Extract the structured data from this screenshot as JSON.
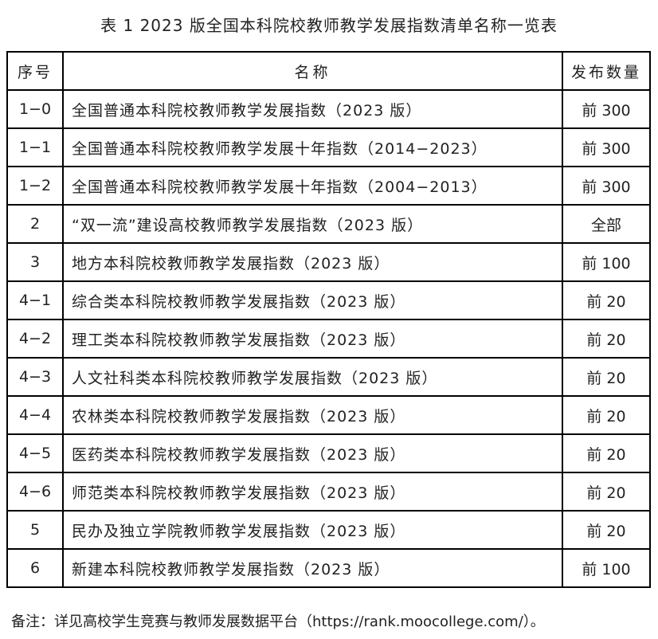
{
  "title": "表 1 2023 版全国本科院校教师教学发展指数清单名称一览表",
  "headers": [
    "序号",
    "名称",
    "发布数量"
  ],
  "rows": [
    {
      "no": "1−0",
      "name": "全国普通本科院校教师教学发展指数（2023 版）",
      "count": "前 300"
    },
    {
      "no": "1−1",
      "name": "全国普通本科院校教师教学发展十年指数（2014−2023）",
      "count": "前 300"
    },
    {
      "no": "1−2",
      "name": "全国普通本科院校教师教学发展十年指数（2004−2013）",
      "count": "前 300"
    },
    {
      "no": "2",
      "name": "“双一流”建设高校教师教学发展指数（2023 版）",
      "count": "全部"
    },
    {
      "no": "3",
      "name": "地方本科院校教师教学发展指数（2023 版）",
      "count": "前 100"
    },
    {
      "no": "4−1",
      "name": "综合类本科院校教师教学发展指数（2023 版）",
      "count": "前 20"
    },
    {
      "no": "4−2",
      "name": "理工类本科院校教师教学发展指数（2023 版）",
      "count": "前 20"
    },
    {
      "no": "4−3",
      "name": "人文社科类本科院校教师教学发展指数（2023 版）",
      "count": "前 20"
    },
    {
      "no": "4−4",
      "name": "农林类本科院校教师教学发展指数（2023 版）",
      "count": "前 20"
    },
    {
      "no": "4−5",
      "name": "医药类本科院校教师教学发展指数（2023 版）",
      "count": "前 20"
    },
    {
      "no": "4−6",
      "name": "师范类本科院校教师教学发展指数（2023 版）",
      "count": "前 20"
    },
    {
      "no": "5",
      "name": "民办及独立学院教师教学发展指数（2023 版）",
      "count": "前 20"
    },
    {
      "no": "6",
      "name": "新建本科院校教师教学发展指数（2023 版）",
      "count": "前 100"
    }
  ],
  "note": "备注：详见高校学生竞赛与教师发展数据平台（https://rank.moocollege.com/）。"
}
